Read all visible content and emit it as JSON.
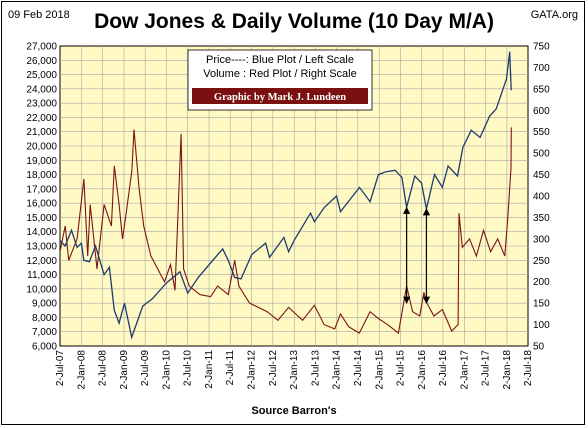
{
  "header": {
    "date": "09 Feb 2018",
    "title": "Dow Jones & Daily Volume (10 Day M/A)",
    "site": "GATA.org"
  },
  "legend": {
    "line1": "Price----: Blue Plot / Left Scale",
    "line2": "Volume : Red Plot / Right Scale",
    "credit": "Graphic by Mark J. Lundeen"
  },
  "footer": {
    "source": "Source Barron's"
  },
  "colors": {
    "plot_bg": "#fff9c4",
    "grid": "#a8a8a8",
    "price": "#1f3a6e",
    "volume": "#7b1414",
    "arrow": "#000000",
    "credit_bg": "#7a1010"
  },
  "chart_data": {
    "type": "line",
    "x_ticks": [
      "2-Jul-07",
      "2-Jan-08",
      "2-Jul-08",
      "2-Jan-09",
      "2-Jul-09",
      "2-Jan-10",
      "2-Jul-10",
      "2-Jan-11",
      "2-Jul-11",
      "2-Jan-12",
      "2-Jul-12",
      "2-Jan-13",
      "2-Jul-13",
      "2-Jan-14",
      "2-Jul-14",
      "2-Jan-15",
      "2-Jul-15",
      "2-Jan-16",
      "2-Jul-16",
      "2-Jan-17",
      "2-Jul-17",
      "2-Jan-18",
      "2-Jul-18"
    ],
    "x_range": [
      "2007-07-02",
      "2018-07-02"
    ],
    "y_left": {
      "min": 6000,
      "max": 27000,
      "step": 1000,
      "ticks": [
        "6,000",
        "7,000",
        "8,000",
        "9,000",
        "10,000",
        "11,000",
        "12,000",
        "13,000",
        "14,000",
        "15,000",
        "16,000",
        "17,000",
        "18,000",
        "19,000",
        "20,000",
        "21,000",
        "22,000",
        "23,000",
        "24,000",
        "25,000",
        "26,000",
        "27,000"
      ]
    },
    "y_right": {
      "min": 50,
      "max": 750,
      "step": 50,
      "ticks": [
        "50",
        "100",
        "150",
        "200",
        "250",
        "300",
        "350",
        "400",
        "450",
        "500",
        "550",
        "600",
        "650",
        "700",
        "750"
      ]
    },
    "grid": true,
    "series": [
      {
        "name": "Price----: Blue Plot / Left Scale",
        "axis": "left",
        "color": "#1f3a6e",
        "points": [
          [
            "2007-07-02",
            13400
          ],
          [
            "2007-08-15",
            13000
          ],
          [
            "2007-10-09",
            14100
          ],
          [
            "2007-11-26",
            12900
          ],
          [
            "2008-01-02",
            13200
          ],
          [
            "2008-01-22",
            12000
          ],
          [
            "2008-03-10",
            11900
          ],
          [
            "2008-05-02",
            13000
          ],
          [
            "2008-07-15",
            11000
          ],
          [
            "2008-08-29",
            11500
          ],
          [
            "2008-10-10",
            8500
          ],
          [
            "2008-11-20",
            7600
          ],
          [
            "2009-01-06",
            9000
          ],
          [
            "2009-03-09",
            6600
          ],
          [
            "2009-06-12",
            8800
          ],
          [
            "2009-09-01",
            9300
          ],
          [
            "2009-12-31",
            10400
          ],
          [
            "2010-04-26",
            11200
          ],
          [
            "2010-07-02",
            9700
          ],
          [
            "2010-10-01",
            10800
          ],
          [
            "2011-01-03",
            11700
          ],
          [
            "2011-04-29",
            12800
          ],
          [
            "2011-06-15",
            12000
          ],
          [
            "2011-08-10",
            10800
          ],
          [
            "2011-10-03",
            10700
          ],
          [
            "2012-01-03",
            12400
          ],
          [
            "2012-05-01",
            13200
          ],
          [
            "2012-06-04",
            12200
          ],
          [
            "2012-10-05",
            13600
          ],
          [
            "2012-11-15",
            12600
          ],
          [
            "2013-01-02",
            13400
          ],
          [
            "2013-05-22",
            15300
          ],
          [
            "2013-06-24",
            14700
          ],
          [
            "2013-09-18",
            15700
          ],
          [
            "2013-12-31",
            16500
          ],
          [
            "2014-02-03",
            15400
          ],
          [
            "2014-07-16",
            17100
          ],
          [
            "2014-10-15",
            16100
          ],
          [
            "2014-12-26",
            18000
          ],
          [
            "2015-03-02",
            18200
          ],
          [
            "2015-05-19",
            18300
          ],
          [
            "2015-07-15",
            17800
          ],
          [
            "2015-08-25",
            15700
          ],
          [
            "2015-11-03",
            17900
          ],
          [
            "2015-12-31",
            17400
          ],
          [
            "2016-02-11",
            15600
          ],
          [
            "2016-04-20",
            18000
          ],
          [
            "2016-06-27",
            17100
          ],
          [
            "2016-08-15",
            18600
          ],
          [
            "2016-11-04",
            17900
          ],
          [
            "2016-12-20",
            19900
          ],
          [
            "2017-03-01",
            21100
          ],
          [
            "2017-05-17",
            20600
          ],
          [
            "2017-08-07",
            22100
          ],
          [
            "2017-10-02",
            22600
          ],
          [
            "2017-12-29",
            24700
          ],
          [
            "2018-01-26",
            26600
          ],
          [
            "2018-02-08",
            23900
          ]
        ]
      },
      {
        "name": "Volume : Red Plot / Right Scale",
        "axis": "right",
        "color": "#7b1414",
        "points": [
          [
            "2007-07-02",
            270
          ],
          [
            "2007-08-16",
            330
          ],
          [
            "2007-09-15",
            250
          ],
          [
            "2007-11-26",
            300
          ],
          [
            "2008-01-23",
            440
          ],
          [
            "2008-02-25",
            260
          ],
          [
            "2008-03-17",
            380
          ],
          [
            "2008-05-15",
            230
          ],
          [
            "2008-07-15",
            380
          ],
          [
            "2008-09-15",
            330
          ],
          [
            "2008-10-10",
            470
          ],
          [
            "2008-11-20",
            380
          ],
          [
            "2008-12-20",
            300
          ],
          [
            "2009-01-20",
            360
          ],
          [
            "2009-03-10",
            460
          ],
          [
            "2009-03-28",
            555
          ],
          [
            "2009-05-10",
            420
          ],
          [
            "2009-06-20",
            330
          ],
          [
            "2009-08-20",
            260
          ],
          [
            "2009-12-15",
            200
          ],
          [
            "2010-02-05",
            240
          ],
          [
            "2010-03-15",
            180
          ],
          [
            "2010-05-07",
            545
          ],
          [
            "2010-05-28",
            230
          ],
          [
            "2010-07-15",
            190
          ],
          [
            "2010-10-15",
            170
          ],
          [
            "2011-01-15",
            165
          ],
          [
            "2011-03-16",
            190
          ],
          [
            "2011-06-15",
            170
          ],
          [
            "2011-08-10",
            250
          ],
          [
            "2011-09-15",
            190
          ],
          [
            "2011-12-15",
            150
          ],
          [
            "2012-05-15",
            130
          ],
          [
            "2012-08-15",
            110
          ],
          [
            "2012-11-15",
            140
          ],
          [
            "2013-03-15",
            110
          ],
          [
            "2013-06-24",
            145
          ],
          [
            "2013-09-15",
            100
          ],
          [
            "2013-12-15",
            90
          ],
          [
            "2014-02-03",
            125
          ],
          [
            "2014-04-15",
            95
          ],
          [
            "2014-07-15",
            80
          ],
          [
            "2014-10-15",
            130
          ],
          [
            "2014-12-20",
            115
          ],
          [
            "2015-03-15",
            100
          ],
          [
            "2015-06-15",
            80
          ],
          [
            "2015-08-25",
            190
          ],
          [
            "2015-10-15",
            130
          ],
          [
            "2015-12-15",
            120
          ],
          [
            "2016-01-20",
            175
          ],
          [
            "2016-02-15",
            150
          ],
          [
            "2016-04-15",
            120
          ],
          [
            "2016-06-27",
            135
          ],
          [
            "2016-09-15",
            85
          ],
          [
            "2016-11-09",
            100
          ],
          [
            "2016-11-17",
            360
          ],
          [
            "2016-12-15",
            280
          ],
          [
            "2017-02-15",
            300
          ],
          [
            "2017-04-15",
            260
          ],
          [
            "2017-06-15",
            320
          ],
          [
            "2017-08-15",
            270
          ],
          [
            "2017-10-15",
            300
          ],
          [
            "2017-12-15",
            260
          ],
          [
            "2018-01-10",
            350
          ],
          [
            "2018-02-06",
            465
          ],
          [
            "2018-02-09",
            560
          ]
        ]
      }
    ],
    "annotations": [
      {
        "type": "double-arrow",
        "x": "2015-08-25",
        "y_from": 9000,
        "y_to": 15700
      },
      {
        "type": "double-arrow",
        "x": "2016-02-11",
        "y_from": 9000,
        "y_to": 15600
      }
    ]
  }
}
